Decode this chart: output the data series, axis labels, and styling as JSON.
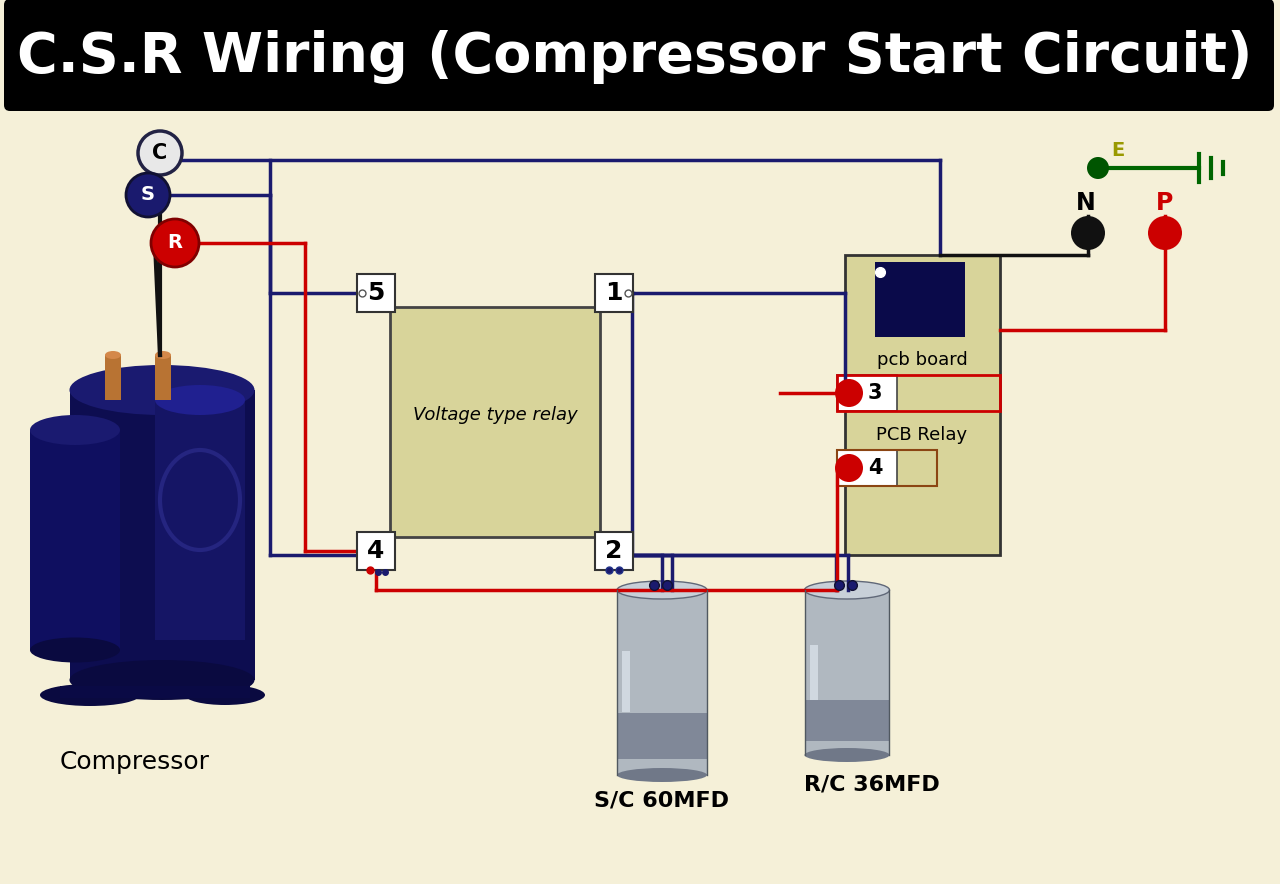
{
  "title": "C.S.R Wiring (Compressor Start Circuit)",
  "bg_color": "#f5f0d8",
  "title_bg": "#000000",
  "title_color": "#ffffff",
  "wire_blue": "#1a1a6e",
  "wire_red": "#cc0000",
  "wire_black": "#111111",
  "wire_green": "#006600",
  "relay_fill": "#d8d49a",
  "pcb_fill": "#d8d49a",
  "compressor_label": "Compressor",
  "cap1_label": "S/C 60MFD",
  "cap2_label": "R/C 36MFD",
  "relay_label": "Voltage type relay",
  "pcb_label": "pcb board",
  "pcb_relay_label": "PCB Relay",
  "lw": 2.5
}
